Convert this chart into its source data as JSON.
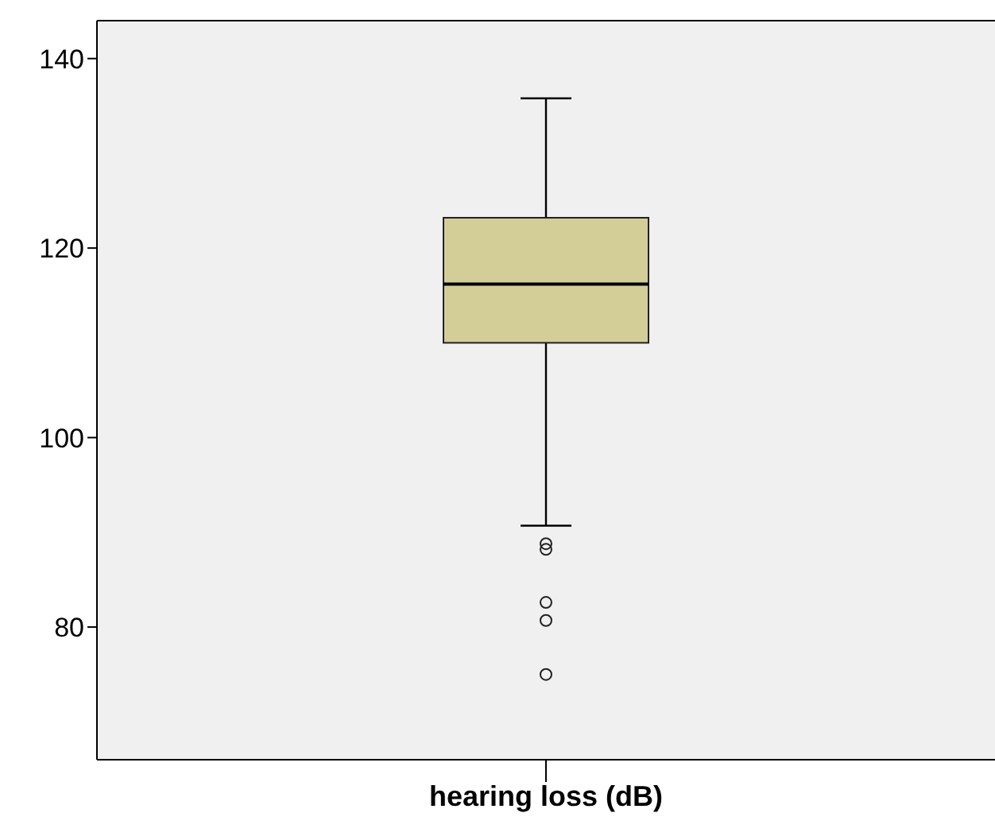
{
  "chart_data": {
    "type": "box",
    "categories": [
      "hearing loss (dB)"
    ],
    "boxes": [
      {
        "low": 90.7,
        "q1": 110,
        "median": 116.2,
        "q3": 123.2,
        "high": 135.8,
        "outliers": [
          88.8,
          88.2,
          82.6,
          80.7,
          75
        ]
      }
    ],
    "color": "#d3cd98",
    "ylim": [
      66,
      144
    ],
    "yticks": [
      80,
      100,
      120,
      140
    ]
  }
}
